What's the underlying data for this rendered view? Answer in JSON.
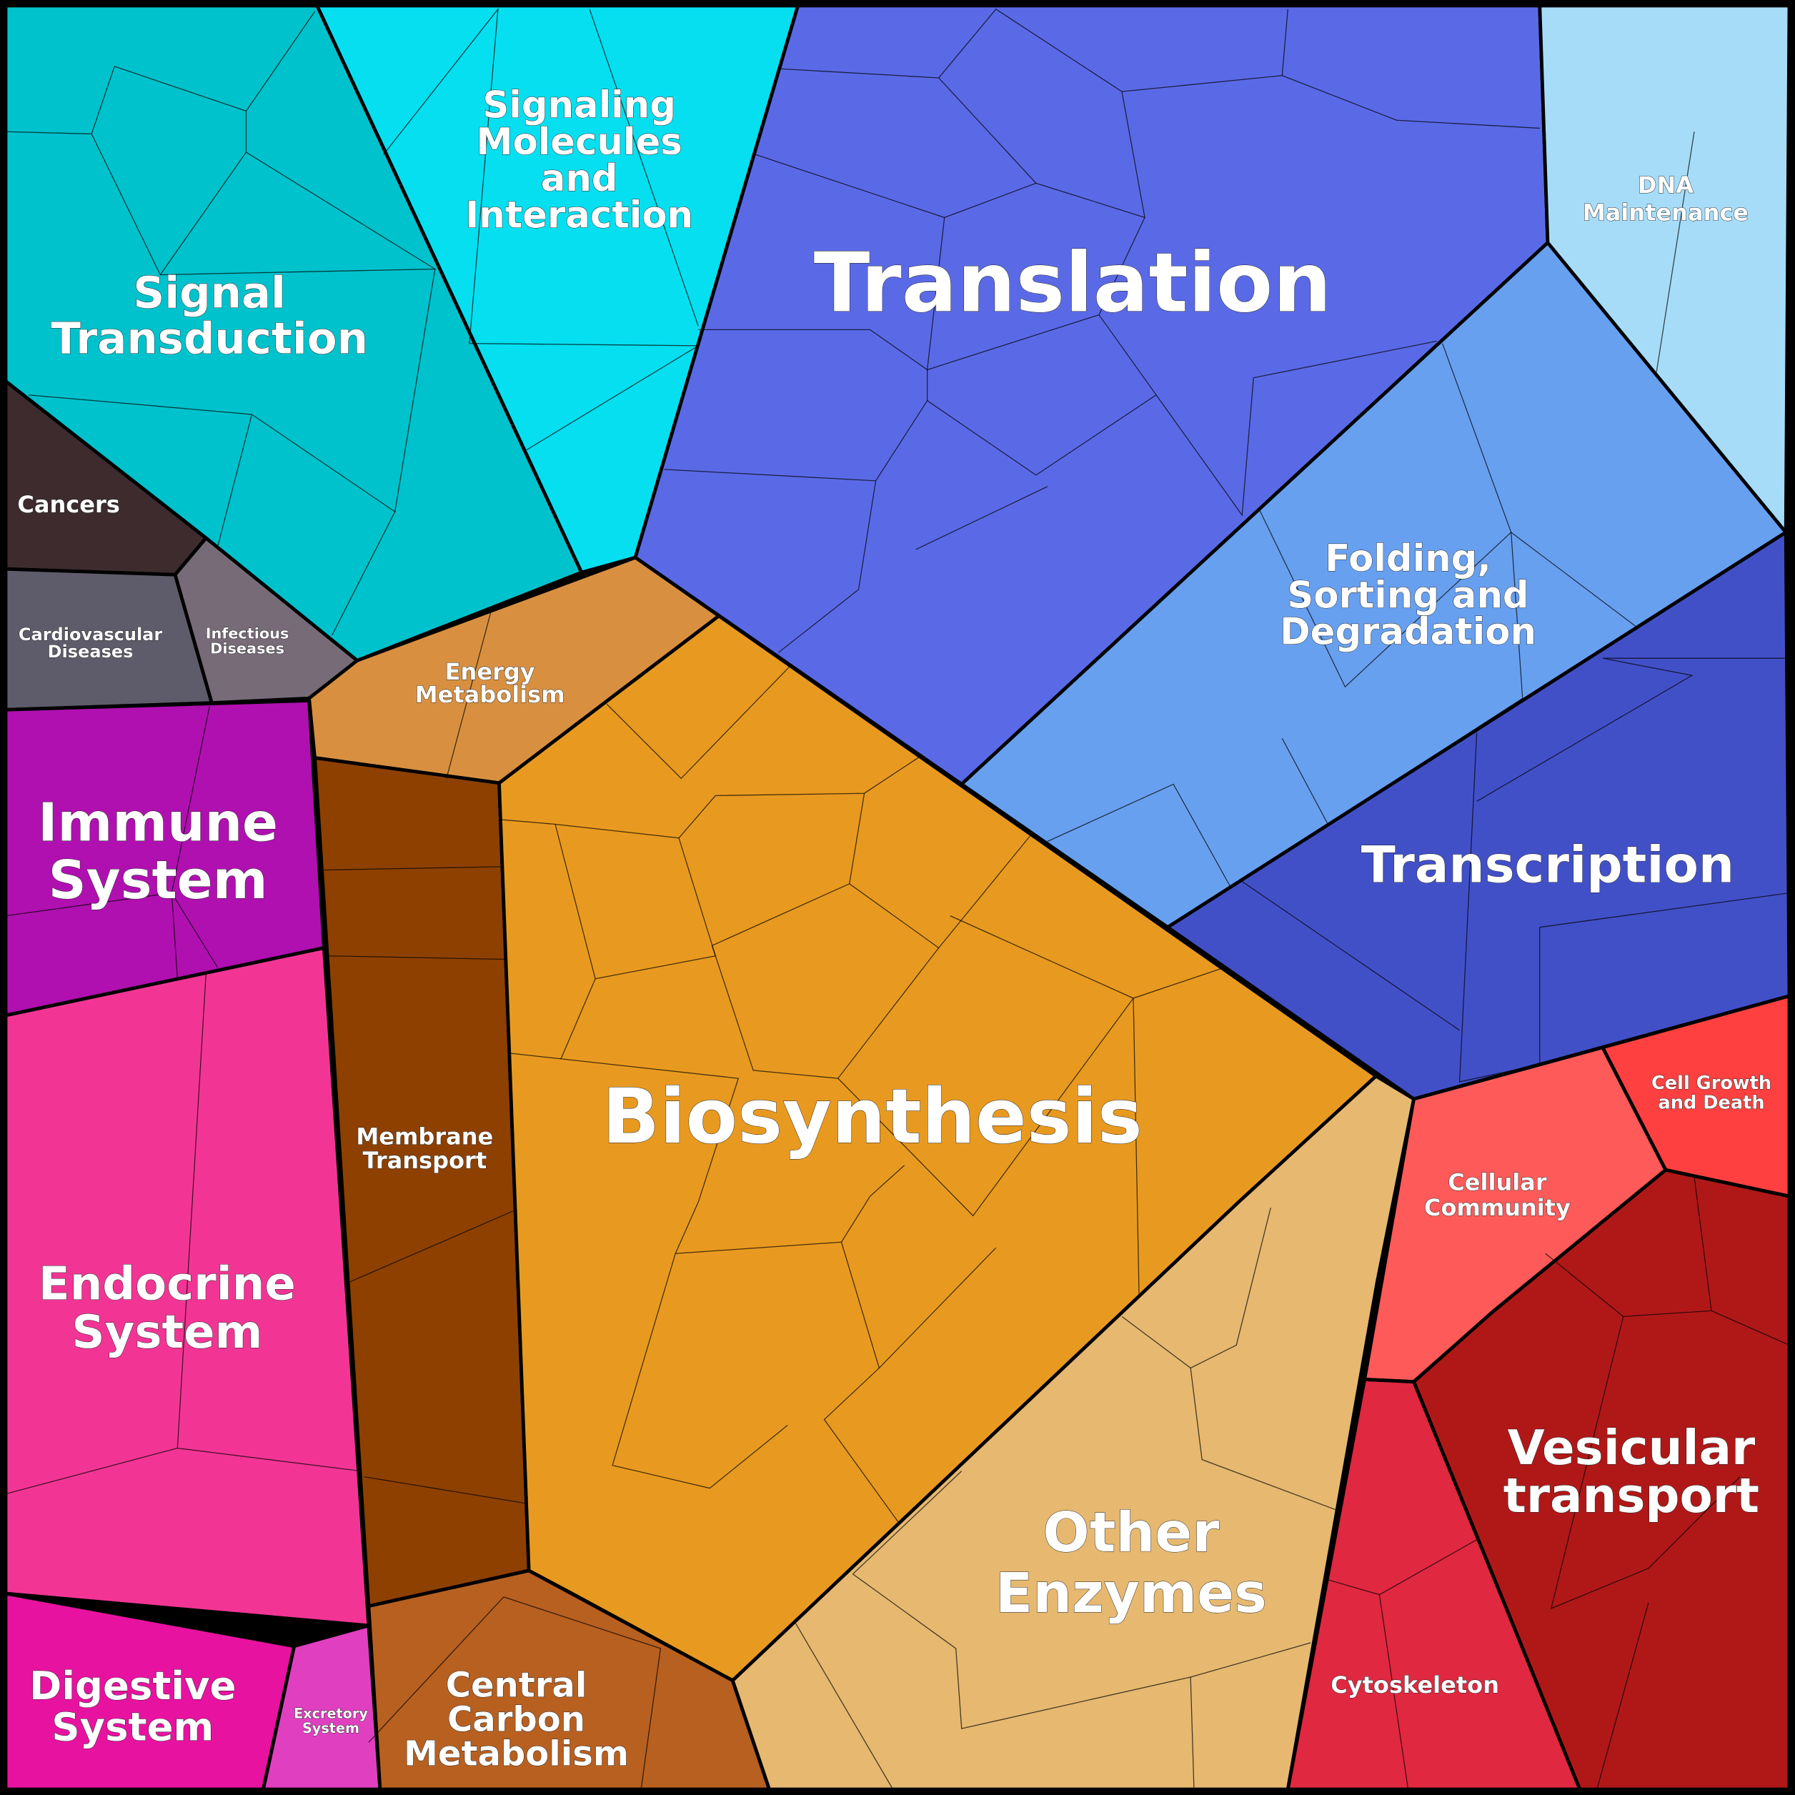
{
  "regions": [
    {
      "label": [
        "Signal",
        "Transduction"
      ],
      "color": "#00c2cc"
    },
    {
      "label": [
        "Signaling",
        "Molecules",
        "and",
        "Interaction"
      ],
      "color": "#06dff0"
    },
    {
      "label": [
        "Cancers"
      ],
      "color": "#3d2b2e"
    },
    {
      "label": [
        "Cardiovascular",
        "Diseases"
      ],
      "color": "#5e5b6a"
    },
    {
      "label": [
        "Infectious",
        "Diseases"
      ],
      "color": "#776b78"
    },
    {
      "label": [
        "Translation"
      ],
      "color": "#5a6ae6"
    },
    {
      "label": [
        "Folding,",
        "Sorting and",
        "Degradation"
      ],
      "color": "#68a0f0"
    },
    {
      "label": [
        "Transcription"
      ],
      "color": "#4250c8"
    },
    {
      "label": [
        "DNA",
        "Maintenance"
      ],
      "color": "#a6dcf8"
    },
    {
      "label": [
        "Immune",
        "System"
      ],
      "color": "#b010b0"
    },
    {
      "label": [
        "Endocrine",
        "System"
      ],
      "color": "#f23595"
    },
    {
      "label": [
        "Digestive",
        "System"
      ],
      "color": "#e812a0"
    },
    {
      "label": [
        "Excretory",
        "System"
      ],
      "color": "#e040c0"
    },
    {
      "label": [
        "Energy",
        "Metabolism"
      ],
      "color": "#d89040"
    },
    {
      "label": [
        "Membrane",
        "Transport"
      ],
      "color": "#8e4000"
    },
    {
      "label": [
        "Biosynthesis"
      ],
      "color": "#e89a20"
    },
    {
      "label": [
        "Central",
        "Carbon",
        "Metabolism"
      ],
      "color": "#b86020"
    },
    {
      "label": [
        "Other",
        "Enzymes"
      ],
      "color": "#e6b870"
    },
    {
      "label": [
        "Cellular",
        "Community"
      ],
      "color": "#ff5a5a"
    },
    {
      "label": [
        "Cell Growth",
        "and Death"
      ],
      "color": "#ff4040"
    },
    {
      "label": [
        "Vesicular",
        "transport"
      ],
      "color": "#b01818"
    },
    {
      "label": [
        "Cytoskeleton"
      ],
      "color": "#e02840"
    }
  ]
}
